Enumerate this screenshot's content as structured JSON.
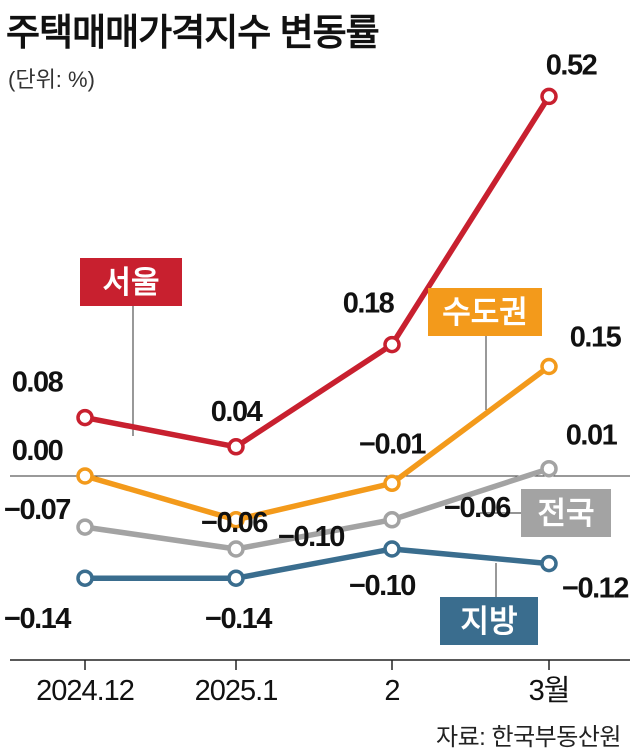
{
  "title": "주택매매가격지수 변동률",
  "unit": "(단위: %)",
  "source": "자료: 한국부동산원",
  "chart_data": {
    "type": "line",
    "title": "주택매매가격지수 변동률",
    "ylabel": "(단위: %)",
    "categories": [
      "2024.12",
      "2025.1",
      "2",
      "3월"
    ],
    "ylim": [
      -0.26,
      0.55
    ],
    "grid": false,
    "series": [
      {
        "name": "서울",
        "color": "#c8202f",
        "values": [
          0.08,
          0.04,
          0.18,
          0.52
        ],
        "labels": [
          "0.08",
          "0.04",
          "0.18",
          "0.52"
        ]
      },
      {
        "name": "수도권",
        "color": "#f39a1b",
        "values": [
          0.0,
          -0.06,
          -0.01,
          0.15
        ],
        "labels": [
          "0.00",
          "−0.06",
          "−0.01",
          "0.15"
        ]
      },
      {
        "name": "전국",
        "color": "#a3a3a3",
        "values": [
          -0.07,
          -0.1,
          -0.06,
          0.01
        ],
        "labels": [
          "−0.07",
          "−0.10",
          "−0.06",
          "0.01"
        ]
      },
      {
        "name": "지방",
        "color": "#3a6d8e",
        "values": [
          -0.14,
          -0.14,
          -0.1,
          -0.12
        ],
        "labels": [
          "−0.14",
          "−0.14",
          "−0.10",
          "−0.12"
        ]
      }
    ]
  }
}
